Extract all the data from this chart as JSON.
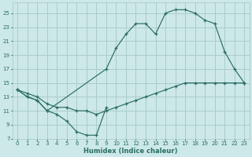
{
  "xlabel": "Humidex (Indice chaleur)",
  "bg_color": "#cde8e8",
  "grid_color": "#aacccc",
  "line_color": "#2a6e62",
  "xlim_min": -0.5,
  "xlim_max": 23.5,
  "ylim_min": 7,
  "ylim_max": 26.5,
  "xticks": [
    0,
    1,
    2,
    3,
    4,
    5,
    6,
    7,
    8,
    9,
    10,
    11,
    12,
    13,
    14,
    15,
    16,
    17,
    18,
    19,
    20,
    21,
    22,
    23
  ],
  "yticks": [
    7,
    9,
    11,
    13,
    15,
    17,
    19,
    21,
    23,
    25
  ],
  "series": [
    {
      "x": [
        0,
        1,
        2,
        3,
        4,
        5,
        6,
        7,
        8,
        9
      ],
      "y": [
        14,
        13,
        12.5,
        11,
        10.5,
        9.5,
        8,
        7.5,
        7.5,
        11.5
      ]
    },
    {
      "x": [
        0,
        1,
        2,
        3,
        4,
        5,
        6,
        7,
        8,
        9,
        10,
        11,
        12,
        13,
        14,
        15,
        16,
        17,
        18,
        19,
        20,
        21,
        22,
        23
      ],
      "y": [
        14,
        13.5,
        13,
        12,
        11.5,
        11.5,
        11,
        11,
        10.5,
        11,
        11.5,
        12,
        12.5,
        13,
        13.5,
        14,
        14.5,
        15,
        15,
        15,
        15,
        15,
        15,
        15
      ]
    },
    {
      "x": [
        0,
        1,
        2,
        3,
        9,
        10,
        11,
        12,
        13,
        14,
        15,
        16,
        17,
        18,
        19,
        20,
        21,
        22,
        23
      ],
      "y": [
        14,
        13,
        12.5,
        11,
        17,
        20,
        22,
        23.5,
        23.5,
        22,
        25,
        25.5,
        25.5,
        25,
        24,
        23.5,
        19.5,
        17,
        15
      ]
    }
  ]
}
